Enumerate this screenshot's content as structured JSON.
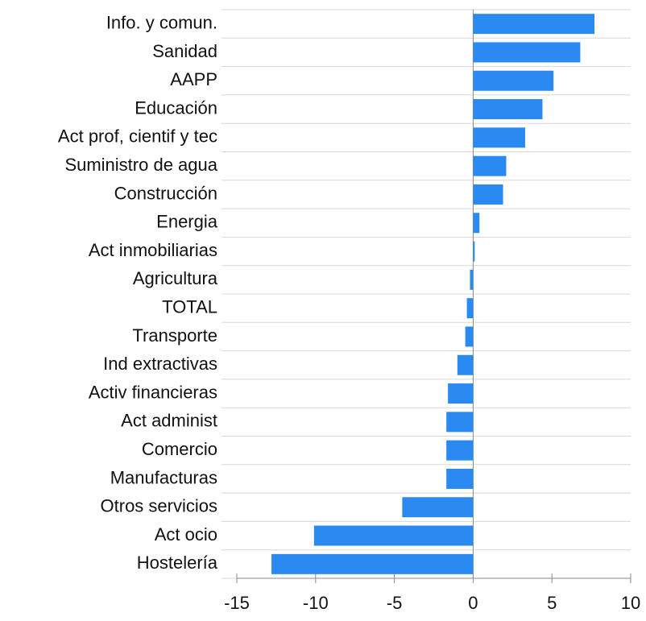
{
  "chart_data": {
    "type": "bar",
    "orientation": "horizontal",
    "categories": [
      "Info. y comun.",
      "Sanidad",
      "AAPP",
      "Educación",
      "Act prof, cientif y tec",
      "Suministro de agua",
      "Construcción",
      "Energia",
      "Act inmobiliarias",
      "Agricultura",
      "TOTAL",
      "Transporte",
      "Ind extractivas",
      "Activ financieras",
      "Act administ",
      "Comercio",
      "Manufacturas",
      "Otros servicios",
      "Act ocio",
      "Hostelería"
    ],
    "values": [
      7.7,
      6.8,
      5.1,
      4.4,
      3.3,
      2.1,
      1.9,
      0.4,
      0.1,
      -0.2,
      -0.4,
      -0.5,
      -1.0,
      -1.6,
      -1.7,
      -1.7,
      -1.7,
      -4.5,
      -10.1,
      -12.8
    ],
    "color": "#2b8af2",
    "xlim": [
      -15,
      10
    ],
    "xticks": [
      -15,
      -10,
      -5,
      0,
      5,
      10
    ]
  }
}
